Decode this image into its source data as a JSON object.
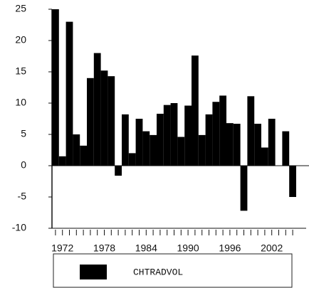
{
  "chart_data": {
    "type": "bar",
    "categories": [
      null,
      "1972",
      null,
      null,
      null,
      null,
      null,
      "1978",
      null,
      null,
      null,
      null,
      null,
      "1984",
      null,
      null,
      null,
      null,
      null,
      "1990",
      null,
      null,
      null,
      null,
      null,
      "1996",
      null,
      null,
      null,
      null,
      null,
      "2002",
      null,
      null,
      null
    ],
    "series": [
      {
        "name": "CHTRADVOL",
        "color": "#000000",
        "values": [
          25,
          1.5,
          23,
          5,
          3.2,
          14,
          18,
          15.2,
          14.3,
          -1.6,
          8.2,
          2,
          7.5,
          5.5,
          4.9,
          8.3,
          9.7,
          10,
          4.6,
          9.6,
          17.6,
          4.9,
          8.2,
          10.2,
          11.2,
          6.8,
          6.7,
          -7.2,
          11.1,
          6.7,
          2.9,
          7.5,
          0,
          5.5,
          -5
        ]
      }
    ],
    "ylim": [
      -10,
      25
    ],
    "yticks": [
      -10,
      -5,
      0,
      5,
      10,
      15,
      20,
      25
    ]
  }
}
